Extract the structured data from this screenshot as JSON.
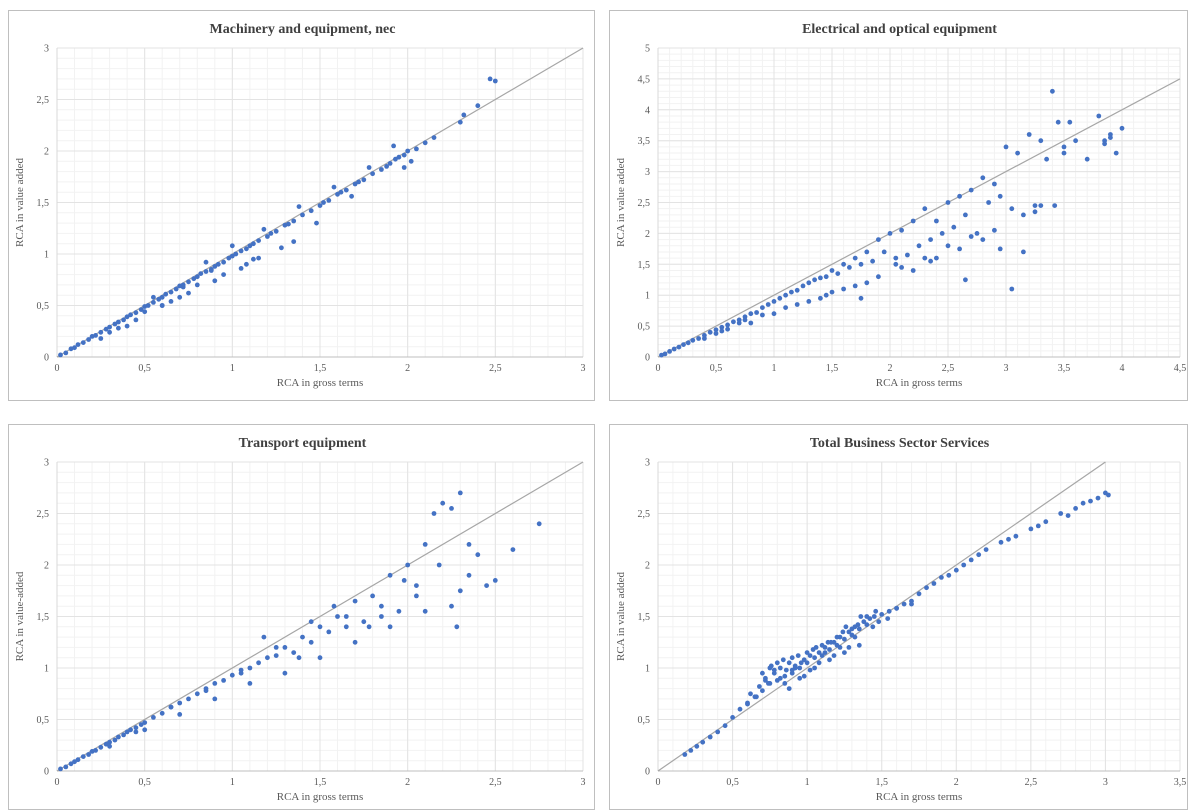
{
  "chart_data": [
    {
      "type": "scatter",
      "title": "Machinery and equipment, nec",
      "xlabel": "RCA in gross terms",
      "ylabel": "RCA in value added",
      "xlim": [
        0,
        3
      ],
      "ylim": [
        0,
        3
      ],
      "xticks": [
        "0",
        "0,5",
        "1",
        "1,5",
        "2",
        "2,5",
        "3"
      ],
      "yticks": [
        "0",
        "0,5",
        "1",
        "1,5",
        "2",
        "2,5",
        "3"
      ],
      "grid": true,
      "reference_line": "y = x",
      "point_color": "#4472c4",
      "line_color": "#a6a6a6",
      "series": [
        {
          "x": [
            0.02,
            0.05,
            0.08,
            0.1,
            0.12,
            0.15,
            0.18,
            0.2,
            0.22,
            0.25,
            0.28,
            0.3,
            0.33,
            0.35,
            0.38,
            0.4,
            0.42,
            0.45,
            0.48,
            0.5,
            0.52,
            0.55,
            0.58,
            0.6,
            0.62,
            0.65,
            0.68,
            0.7,
            0.72,
            0.75,
            0.78,
            0.8,
            0.82,
            0.85,
            0.88,
            0.9,
            0.92,
            0.95,
            0.98,
            1.0,
            1.02,
            1.05,
            1.08,
            1.1,
            1.12,
            1.15,
            1.2,
            1.22,
            1.25,
            1.3,
            1.32,
            1.35,
            1.4,
            1.45,
            1.5,
            1.52,
            1.55,
            1.6,
            1.62,
            1.65,
            1.7,
            1.72,
            1.75,
            1.8,
            1.85,
            1.9,
            1.93,
            1.95,
            1.98,
            2.0,
            2.05,
            2.1,
            2.15,
            2.3,
            2.32,
            2.4,
            2.47,
            2.5,
            0.3,
            0.45,
            0.6,
            0.75,
            0.9,
            1.05,
            1.15,
            1.28,
            0.55,
            0.85,
            1.0,
            1.18,
            1.38,
            1.58,
            1.78,
            1.92,
            0.4,
            0.7,
            0.95,
            1.12,
            1.48,
            1.68,
            0.25,
            0.35,
            0.5,
            0.65,
            0.8,
            1.08,
            1.35,
            1.88,
            1.98,
            2.02,
            0.6,
            0.72,
            0.88
          ],
          "y": [
            0.02,
            0.04,
            0.08,
            0.09,
            0.12,
            0.14,
            0.17,
            0.2,
            0.21,
            0.24,
            0.27,
            0.29,
            0.32,
            0.34,
            0.36,
            0.39,
            0.41,
            0.43,
            0.46,
            0.49,
            0.5,
            0.53,
            0.56,
            0.58,
            0.61,
            0.63,
            0.66,
            0.69,
            0.7,
            0.73,
            0.76,
            0.78,
            0.81,
            0.83,
            0.85,
            0.88,
            0.9,
            0.92,
            0.96,
            0.98,
            1.0,
            1.03,
            1.05,
            1.08,
            1.1,
            1.13,
            1.17,
            1.2,
            1.22,
            1.28,
            1.29,
            1.32,
            1.38,
            1.42,
            1.47,
            1.5,
            1.52,
            1.58,
            1.6,
            1.62,
            1.68,
            1.7,
            1.72,
            1.78,
            1.82,
            1.88,
            1.92,
            1.94,
            1.96,
            2.0,
            2.02,
            2.08,
            2.13,
            2.28,
            2.35,
            2.44,
            2.7,
            2.68,
            0.24,
            0.36,
            0.5,
            0.62,
            0.74,
            0.86,
            0.96,
            1.06,
            0.58,
            0.92,
            1.08,
            1.24,
            1.46,
            1.65,
            1.84,
            2.05,
            0.3,
            0.58,
            0.8,
            0.95,
            1.3,
            1.56,
            0.18,
            0.28,
            0.44,
            0.54,
            0.7,
            0.9,
            1.12,
            1.85,
            1.84,
            1.9,
            0.5,
            0.68,
            0.84
          ]
        }
      ]
    },
    {
      "type": "scatter",
      "title": "Electrical and optical equipment",
      "xlabel": "RCA in gross terms",
      "ylabel": "RCA in value added",
      "xlim": [
        0,
        4.5
      ],
      "ylim": [
        0,
        5
      ],
      "xticks": [
        "0",
        "0,5",
        "1",
        "1,5",
        "2",
        "2,5",
        "3",
        "3,5",
        "4",
        "4,5"
      ],
      "yticks": [
        "0",
        "0,5",
        "1",
        "1,5",
        "2",
        "2,5",
        "3",
        "3,5",
        "4",
        "4,5",
        "5"
      ],
      "grid": true,
      "reference_line": "y = x",
      "point_color": "#4472c4",
      "line_color": "#a6a6a6",
      "series": [
        {
          "x": [
            0.03,
            0.06,
            0.1,
            0.14,
            0.18,
            0.22,
            0.26,
            0.3,
            0.35,
            0.4,
            0.45,
            0.5,
            0.55,
            0.6,
            0.65,
            0.7,
            0.75,
            0.8,
            0.85,
            0.9,
            0.95,
            1.0,
            1.05,
            1.1,
            1.15,
            1.2,
            1.25,
            1.3,
            1.35,
            1.4,
            1.45,
            1.5,
            1.55,
            1.6,
            1.65,
            1.7,
            1.75,
            1.8,
            1.85,
            1.9,
            1.95,
            2.0,
            2.05,
            2.1,
            2.15,
            2.2,
            2.25,
            2.3,
            2.35,
            2.4,
            2.45,
            2.5,
            2.55,
            2.6,
            2.65,
            2.7,
            2.75,
            2.8,
            2.85,
            2.9,
            2.95,
            3.0,
            3.05,
            3.1,
            3.15,
            3.2,
            3.25,
            3.3,
            3.35,
            3.4,
            3.45,
            3.5,
            3.55,
            3.6,
            3.7,
            3.8,
            3.85,
            3.9,
            3.95,
            4.0,
            0.4,
            0.6,
            0.8,
            1.0,
            1.2,
            1.4,
            1.6,
            1.8,
            2.2,
            2.4,
            2.6,
            2.8,
            3.05,
            3.3,
            0.5,
            0.7,
            0.9,
            1.3,
            1.5,
            1.7,
            1.9,
            2.1,
            2.3,
            2.5,
            2.7,
            2.9,
            3.15,
            3.42,
            3.85,
            0.55,
            0.75,
            1.1,
            1.45,
            1.75,
            2.05,
            2.35,
            2.65,
            2.95,
            3.25,
            3.5,
            3.9
          ],
          "y": [
            0.03,
            0.05,
            0.09,
            0.13,
            0.16,
            0.2,
            0.23,
            0.27,
            0.3,
            0.35,
            0.4,
            0.44,
            0.48,
            0.52,
            0.57,
            0.6,
            0.65,
            0.7,
            0.72,
            0.8,
            0.85,
            0.9,
            0.95,
            1.0,
            1.05,
            1.08,
            1.15,
            1.2,
            1.25,
            1.28,
            1.3,
            1.4,
            1.35,
            1.5,
            1.45,
            1.6,
            1.5,
            1.7,
            1.55,
            1.9,
            1.7,
            2.0,
            1.6,
            2.05,
            1.65,
            2.2,
            1.8,
            2.4,
            1.9,
            2.2,
            2.0,
            2.5,
            2.1,
            2.6,
            2.3,
            2.7,
            2.0,
            2.9,
            2.5,
            2.8,
            2.6,
            3.4,
            2.4,
            3.3,
            2.3,
            3.6,
            2.35,
            3.5,
            3.2,
            4.3,
            3.8,
            3.4,
            3.8,
            3.5,
            3.2,
            3.9,
            3.5,
            3.6,
            3.3,
            3.7,
            0.3,
            0.45,
            0.55,
            0.7,
            0.85,
            0.95,
            1.1,
            1.2,
            1.4,
            1.6,
            1.75,
            1.9,
            1.1,
            2.45,
            0.38,
            0.55,
            0.68,
            0.9,
            1.05,
            1.15,
            1.3,
            1.45,
            1.6,
            1.8,
            1.95,
            2.05,
            1.7,
            2.45,
            3.45,
            0.42,
            0.6,
            0.8,
            1.0,
            0.95,
            1.5,
            1.55,
            1.25,
            1.75,
            2.45,
            3.3,
            3.55
          ]
        }
      ]
    },
    {
      "type": "scatter",
      "title": "Transport equipment",
      "xlabel": "RCA in gross terms",
      "ylabel": "RCA in value-added",
      "xlim": [
        0,
        3
      ],
      "ylim": [
        0,
        3
      ],
      "xticks": [
        "0",
        "0,5",
        "1",
        "1,5",
        "2",
        "2,5",
        "3"
      ],
      "yticks": [
        "0",
        "0,5",
        "1",
        "1,5",
        "2",
        "2,5",
        "3"
      ],
      "grid": true,
      "reference_line": "y = x",
      "point_color": "#4472c4",
      "line_color": "#a6a6a6",
      "series": [
        {
          "x": [
            0.02,
            0.05,
            0.08,
            0.1,
            0.12,
            0.15,
            0.18,
            0.2,
            0.22,
            0.25,
            0.28,
            0.3,
            0.33,
            0.35,
            0.38,
            0.4,
            0.42,
            0.45,
            0.48,
            0.5,
            0.55,
            0.6,
            0.65,
            0.7,
            0.75,
            0.8,
            0.85,
            0.9,
            0.95,
            1.0,
            1.05,
            1.1,
            1.15,
            1.2,
            1.25,
            1.3,
            1.35,
            1.4,
            1.45,
            1.5,
            1.55,
            1.6,
            1.65,
            1.7,
            1.75,
            1.8,
            1.85,
            1.9,
            1.95,
            2.0,
            2.05,
            2.1,
            2.15,
            2.2,
            2.25,
            2.3,
            2.35,
            2.4,
            2.5,
            2.6,
            2.75,
            0.3,
            0.5,
            0.7,
            0.9,
            1.1,
            1.3,
            1.5,
            1.7,
            1.9,
            2.1,
            2.3,
            0.45,
            0.65,
            0.85,
            1.05,
            1.25,
            1.45,
            1.65,
            1.85,
            2.05,
            2.25,
            2.45,
            1.18,
            1.38,
            1.58,
            1.78,
            1.98,
            2.18,
            2.28,
            2.35
          ],
          "y": [
            0.02,
            0.04,
            0.07,
            0.09,
            0.11,
            0.14,
            0.16,
            0.19,
            0.2,
            0.23,
            0.26,
            0.28,
            0.3,
            0.33,
            0.35,
            0.38,
            0.4,
            0.42,
            0.45,
            0.47,
            0.52,
            0.56,
            0.62,
            0.66,
            0.7,
            0.75,
            0.8,
            0.85,
            0.88,
            0.93,
            0.95,
            1.0,
            1.05,
            1.1,
            1.12,
            1.2,
            1.15,
            1.3,
            1.25,
            1.4,
            1.35,
            1.5,
            1.4,
            1.65,
            1.45,
            1.7,
            1.5,
            1.9,
            1.55,
            2.0,
            1.7,
            2.2,
            2.5,
            2.6,
            2.55,
            2.7,
            2.2,
            2.1,
            1.85,
            2.15,
            2.4,
            0.24,
            0.4,
            0.55,
            0.7,
            0.85,
            0.95,
            1.1,
            1.25,
            1.4,
            1.55,
            1.75,
            0.38,
            0.62,
            0.78,
            0.98,
            1.2,
            1.45,
            1.5,
            1.6,
            1.8,
            1.6,
            1.8,
            1.3,
            1.1,
            1.6,
            1.4,
            1.85,
            2.0,
            1.4,
            1.9
          ]
        }
      ]
    },
    {
      "type": "scatter",
      "title": "Total Business Sector Services",
      "xlabel": "RCA in gross terms",
      "ylabel": "RCA in value added",
      "xlim": [
        0,
        3.5
      ],
      "ylim": [
        0,
        3
      ],
      "xticks": [
        "0",
        "0,5",
        "1",
        "1,5",
        "2",
        "2,5",
        "3",
        "3,5"
      ],
      "yticks": [
        "0",
        "0,5",
        "1",
        "1,5",
        "2",
        "2,5",
        "3"
      ],
      "grid": true,
      "reference_line": "y = x",
      "point_color": "#4472c4",
      "line_color": "#a6a6a6",
      "series": [
        {
          "x": [
            0.18,
            0.22,
            0.26,
            0.3,
            0.35,
            0.4,
            0.45,
            0.5,
            0.55,
            0.6,
            0.62,
            0.65,
            0.68,
            0.7,
            0.72,
            0.75,
            0.78,
            0.8,
            0.82,
            0.85,
            0.88,
            0.9,
            0.92,
            0.95,
            0.98,
            1.0,
            1.02,
            1.05,
            1.08,
            1.1,
            1.12,
            1.15,
            1.18,
            1.2,
            1.22,
            1.25,
            1.28,
            1.3,
            1.32,
            1.35,
            1.38,
            1.4,
            1.42,
            1.45,
            1.48,
            1.5,
            1.55,
            1.6,
            1.65,
            1.7,
            1.75,
            1.8,
            1.85,
            1.9,
            1.95,
            2.0,
            2.05,
            2.1,
            2.2,
            2.3,
            2.4,
            2.5,
            2.6,
            2.7,
            2.8,
            2.85,
            2.9,
            2.95,
            3.0,
            3.02,
            0.7,
            0.75,
            0.8,
            0.85,
            0.9,
            0.95,
            1.0,
            1.05,
            1.1,
            1.15,
            1.2,
            1.25,
            1.3,
            1.35,
            1.4,
            0.72,
            0.78,
            0.84,
            0.88,
            0.94,
            0.98,
            1.04,
            1.08,
            1.14,
            1.18,
            1.24,
            1.28,
            1.34,
            1.44,
            1.54,
            0.6,
            0.66,
            0.74,
            0.82,
            0.9,
            0.96,
            1.02,
            1.12,
            1.22,
            1.32,
            1.6,
            1.7,
            0.76,
            0.86,
            0.92,
            1.06,
            1.16,
            1.26,
            1.36,
            1.46,
            2.15,
            2.35,
            2.55,
            2.75
          ],
          "y": [
            0.16,
            0.2,
            0.24,
            0.28,
            0.33,
            0.38,
            0.44,
            0.52,
            0.6,
            0.66,
            0.75,
            0.72,
            0.82,
            0.78,
            0.9,
            0.85,
            0.95,
            0.88,
            1.0,
            0.92,
            1.05,
            0.95,
            1.02,
            1.0,
            1.08,
            1.05,
            1.12,
            1.1,
            1.15,
            1.12,
            1.2,
            1.18,
            1.25,
            1.22,
            1.3,
            1.28,
            1.35,
            1.32,
            1.4,
            1.38,
            1.45,
            1.42,
            1.48,
            1.5,
            1.45,
            1.52,
            1.55,
            1.58,
            1.62,
            1.65,
            1.72,
            1.78,
            1.82,
            1.88,
            1.9,
            1.95,
            2.0,
            2.05,
            2.15,
            2.22,
            2.28,
            2.35,
            2.42,
            2.5,
            2.55,
            2.6,
            2.62,
            2.65,
            2.7,
            2.68,
            0.95,
            1.0,
            1.05,
            0.85,
            1.1,
            0.9,
            1.15,
            1.0,
            1.22,
            1.08,
            1.3,
            1.15,
            1.38,
            1.22,
            1.5,
            0.88,
            0.98,
            1.08,
            0.8,
            1.12,
            0.92,
            1.18,
            1.05,
            1.25,
            1.12,
            1.35,
            1.2,
            1.42,
            1.4,
            1.48,
            0.65,
            0.72,
            0.85,
            0.9,
            0.98,
            1.05,
            0.98,
            1.15,
            1.2,
            1.3,
            1.58,
            1.62,
            1.02,
            0.98,
            1.0,
            1.2,
            1.25,
            1.4,
            1.5,
            1.55,
            2.1,
            2.25,
            2.38,
            2.48
          ]
        }
      ]
    }
  ]
}
